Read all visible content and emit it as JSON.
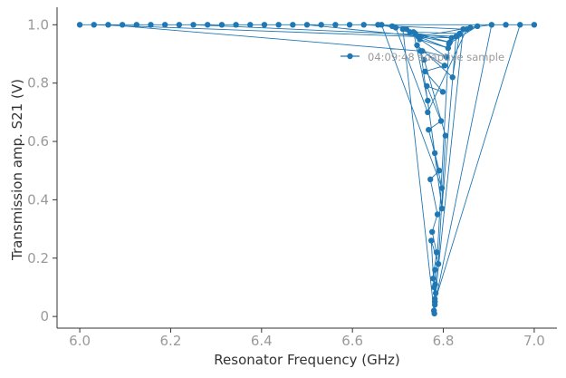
{
  "chart_data": {
    "type": "line",
    "title": "",
    "xlabel": "Resonator Frequency (GHz)",
    "ylabel": "Transmission amp. S21 (V)",
    "xlim": [
      5.95,
      7.05
    ],
    "ylim": [
      -0.04,
      1.06
    ],
    "xticks": [
      6.0,
      6.2,
      6.4,
      6.6,
      6.8,
      7.0
    ],
    "xtick_labels": [
      "6.0",
      "6.2",
      "6.4",
      "6.6",
      "6.8",
      "7.0"
    ],
    "yticks": [
      0,
      0.2,
      0.4,
      0.6,
      0.8,
      1.0
    ],
    "ytick_labels": [
      "0",
      "0.2",
      "0.4",
      "0.6",
      "0.8",
      "1.0"
    ],
    "grid": false,
    "legend_position": "top-right",
    "series": [
      {
        "name": "04:09:48 adaptive sample",
        "color": "#1f77b4",
        "marker": "circle",
        "x": [
          6.0,
          7.0,
          6.5,
          6.75,
          6.875,
          6.8125,
          6.78125,
          6.84375,
          6.625,
          6.6875,
          6.71875,
          6.734375,
          6.765625,
          6.796875,
          6.828125,
          6.25,
          6.375,
          6.4375,
          6.5625,
          6.59375,
          6.9375,
          6.96875,
          6.78125,
          6.7734375,
          6.7890625,
          6.8046875,
          6.7578125,
          6.7421875,
          6.8203125,
          6.8359375,
          6.7265625,
          6.7109375,
          6.7792969,
          6.7832031,
          6.7773438,
          6.7851563,
          6.7753906,
          6.7871094,
          6.7714844,
          6.7910156,
          6.7675781,
          6.7949219,
          6.7636719,
          6.7988281,
          6.7597656,
          6.8027344,
          6.7539063,
          6.8066406,
          6.7480469,
          6.8105469,
          6.7441406,
          6.8144531,
          6.7382813,
          6.8183594,
          6.03125,
          6.0625,
          6.75,
          6.78125,
          6.796875,
          6.6640625,
          6.09375,
          6.125,
          6.15625,
          6.1875,
          6.21875,
          6.28125,
          6.3125,
          6.34375,
          6.40625,
          6.46875,
          6.53125,
          6.65625,
          6.6953125,
          6.765625,
          6.8515625,
          6.859375,
          6.90625,
          6.78125,
          6.7802734,
          6.7822266,
          6.78125,
          6.7797852,
          6.7817383
        ],
        "y": [
          1.0,
          1.0,
          1.0,
          0.96,
          0.995,
          0.935,
          0.05,
          0.985,
          1.0,
          0.995,
          0.985,
          0.975,
          0.74,
          0.37,
          0.96,
          1.0,
          1.0,
          1.0,
          1.0,
          1.0,
          1.0,
          1.0,
          0.05,
          0.26,
          0.18,
          0.62,
          0.88,
          0.93,
          0.82,
          0.97,
          0.975,
          0.985,
          0.02,
          0.08,
          0.13,
          0.22,
          0.29,
          0.35,
          0.47,
          0.5,
          0.64,
          0.67,
          0.79,
          0.77,
          0.84,
          0.86,
          0.91,
          0.89,
          0.95,
          0.92,
          0.96,
          0.94,
          0.97,
          0.955,
          1.0,
          1.0,
          0.91,
          0.56,
          0.44,
          1.0,
          1.0,
          1.0,
          1.0,
          1.0,
          1.0,
          1.0,
          1.0,
          1.0,
          1.0,
          1.0,
          1.0,
          1.0,
          0.99,
          0.7,
          0.985,
          0.99,
          1.0,
          0.04,
          0.01,
          0.11,
          0.06,
          0.1,
          0.16
        ]
      }
    ]
  }
}
